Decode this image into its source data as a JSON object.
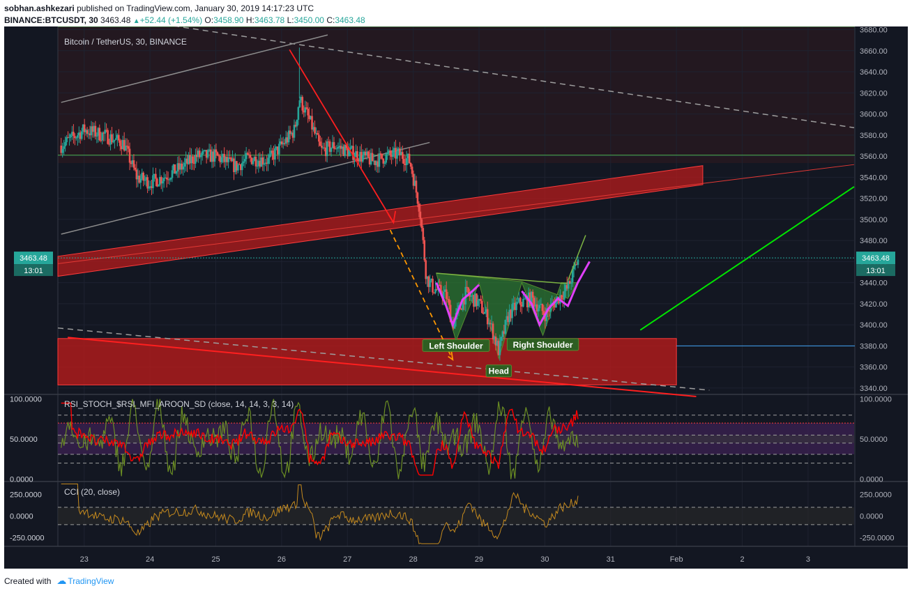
{
  "header": {
    "author": "sobhan.ashkezari",
    "published": "published on TradingView.com, January 30, 2019 14:17:23 UTC",
    "symbol": "BINANCE:BTCUSDT, 30",
    "last": "3463.48",
    "change": "+52.44 (+1.54%)",
    "o_label": "O:",
    "o": "3458.90",
    "h_label": "H:",
    "h": "3463.78",
    "l_label": "L:",
    "l": "3450.00",
    "c_label": "C:",
    "c": "3463.48"
  },
  "footer": {
    "created": "Created with",
    "brand": "TradingView"
  },
  "colors": {
    "bg": "#131722",
    "up": "#26a69a",
    "down": "#ef5350",
    "zone": "#b71c1c",
    "pattern": "#2e7d32",
    "magenta": "#e040fb",
    "green_line": "#00e600",
    "orange": "#ff9800",
    "rsi": "#ff0000",
    "cci": "#c58a1e"
  },
  "chart_data": [
    {
      "type": "candlestick",
      "title": "Bitcoin / TetherUS, 30, BINANCE",
      "x_ticks": [
        "23",
        "24",
        "25",
        "26",
        "27",
        "28",
        "29",
        "30",
        "31",
        "Feb",
        "2",
        "3"
      ],
      "y_ticks": [
        "3340.00",
        "3360.00",
        "3380.00",
        "3400.00",
        "3420.00",
        "3440.00",
        "3460.00",
        "3480.00",
        "3500.00",
        "3520.00",
        "3540.00",
        "3560.00",
        "3580.00",
        "3600.00",
        "3620.00",
        "3640.00",
        "3660.00",
        "3680.00"
      ],
      "ylim": [
        3334,
        3683
      ],
      "xlim": [
        22.6,
        34.7
      ],
      "last_price": "3463.48",
      "countdown": "13:01",
      "series_anchors": [
        [
          22.65,
          3570
        ],
        [
          23.0,
          3585
        ],
        [
          23.3,
          3580
        ],
        [
          23.6,
          3572
        ],
        [
          23.8,
          3540
        ],
        [
          24.0,
          3535
        ],
        [
          24.2,
          3540
        ],
        [
          24.5,
          3550
        ],
        [
          24.7,
          3560
        ],
        [
          25.0,
          3560
        ],
        [
          25.3,
          3550
        ],
        [
          25.5,
          3558
        ],
        [
          25.8,
          3556
        ],
        [
          26.0,
          3570
        ],
        [
          26.2,
          3585
        ],
        [
          26.27,
          3615
        ],
        [
          26.45,
          3590
        ],
        [
          26.6,
          3565
        ],
        [
          26.8,
          3570
        ],
        [
          27.0,
          3565
        ],
        [
          27.2,
          3560
        ],
        [
          27.4,
          3555
        ],
        [
          27.6,
          3560
        ],
        [
          27.8,
          3562
        ],
        [
          27.95,
          3555
        ],
        [
          28.1,
          3510
        ],
        [
          28.2,
          3445
        ],
        [
          28.3,
          3435
        ],
        [
          28.5,
          3428
        ],
        [
          28.6,
          3400
        ],
        [
          28.8,
          3430
        ],
        [
          29.0,
          3420
        ],
        [
          29.15,
          3405
        ],
        [
          29.3,
          3375
        ],
        [
          29.45,
          3410
        ],
        [
          29.6,
          3420
        ],
        [
          29.8,
          3425
        ],
        [
          30.0,
          3410
        ],
        [
          30.2,
          3425
        ],
        [
          30.35,
          3435
        ],
        [
          30.5,
          3462
        ]
      ],
      "annotations": [
        {
          "text": "Left Shoulder",
          "x": 28.65,
          "y": 3380
        },
        {
          "text": "Head",
          "x": 29.3,
          "y": 3356
        },
        {
          "text": "Right Shoulder",
          "x": 29.97,
          "y": 3381
        }
      ]
    },
    {
      "type": "line",
      "title": "RSI_STOCH_$RSI_MFI_AROON_SD (close, 14, 14, 3, 3, 14)",
      "y_ticks": [
        "0.0000",
        "50.0000",
        "100.0000"
      ],
      "ylim": [
        -3,
        105
      ],
      "levels": [
        20,
        31,
        45,
        55,
        70,
        80
      ]
    },
    {
      "type": "line",
      "title": "CCI (20, close)",
      "y_ticks": [
        "-250.0000",
        "0.0000",
        "250.0000"
      ],
      "ylim": [
        -350,
        390
      ],
      "levels": [
        -100,
        100
      ]
    }
  ]
}
